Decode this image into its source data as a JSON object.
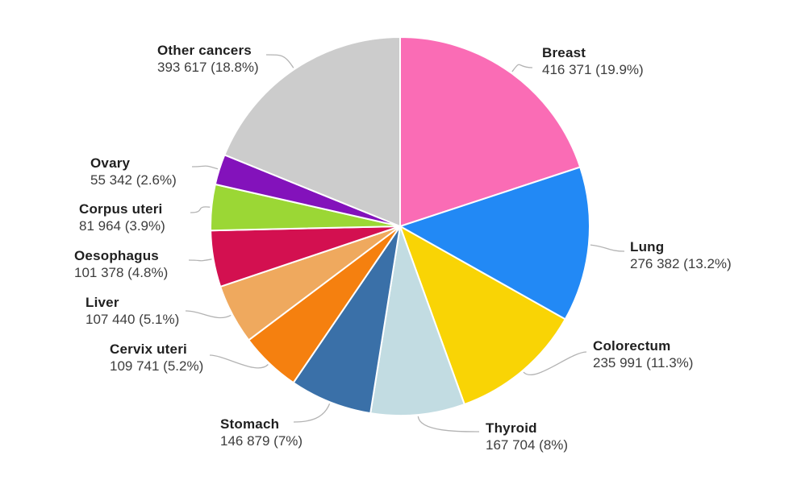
{
  "chart_data": {
    "type": "pie",
    "direction": "clockwise",
    "start_angle_deg": 0,
    "background": "#ffffff",
    "leader_line_color": "#b3b3b3",
    "slice_border_color": "#ffffff",
    "slices": [
      {
        "id": "breast",
        "label": "Breast",
        "value": 416371,
        "display_value": "416 371",
        "percent": 19.9,
        "display_percent": "19.9%",
        "color": "#fa6cb5"
      },
      {
        "id": "lung",
        "label": "Lung",
        "value": 276382,
        "display_value": "276 382",
        "percent": 13.2,
        "display_percent": "13.2%",
        "color": "#2289f5"
      },
      {
        "id": "colorectum",
        "label": "Colorectum",
        "value": 235991,
        "display_value": "235 991",
        "percent": 11.3,
        "display_percent": "11.3%",
        "color": "#f9d405"
      },
      {
        "id": "thyroid",
        "label": "Thyroid",
        "value": 167704,
        "display_value": "167 704",
        "percent": 8,
        "display_percent": "8%",
        "color": "#c2dce2"
      },
      {
        "id": "stomach",
        "label": "Stomach",
        "value": 146879,
        "display_value": "146 879",
        "percent": 7,
        "display_percent": "7%",
        "color": "#3a70a8"
      },
      {
        "id": "cervix-uteri",
        "label": "Cervix uteri",
        "value": 109741,
        "display_value": "109 741",
        "percent": 5.2,
        "display_percent": "5.2%",
        "color": "#f5800f"
      },
      {
        "id": "liver",
        "label": "Liver",
        "value": 107440,
        "display_value": "107 440",
        "percent": 5.1,
        "display_percent": "5.1%",
        "color": "#efa95e"
      },
      {
        "id": "oesophagus",
        "label": "Oesophagus",
        "value": 101378,
        "display_value": "101 378",
        "percent": 4.8,
        "display_percent": "4.8%",
        "color": "#d31050"
      },
      {
        "id": "corpus-uteri",
        "label": "Corpus uteri",
        "value": 81964,
        "display_value": "81 964",
        "percent": 3.9,
        "display_percent": "3.9%",
        "color": "#9bd735"
      },
      {
        "id": "ovary",
        "label": "Ovary",
        "value": 55342,
        "display_value": "55 342",
        "percent": 2.6,
        "display_percent": "2.6%",
        "color": "#8312bb"
      },
      {
        "id": "other-cancers",
        "label": "Other cancers",
        "value": 393617,
        "display_value": "393 617",
        "percent": 18.8,
        "display_percent": "18.8%",
        "color": "#cccccc"
      }
    ]
  }
}
